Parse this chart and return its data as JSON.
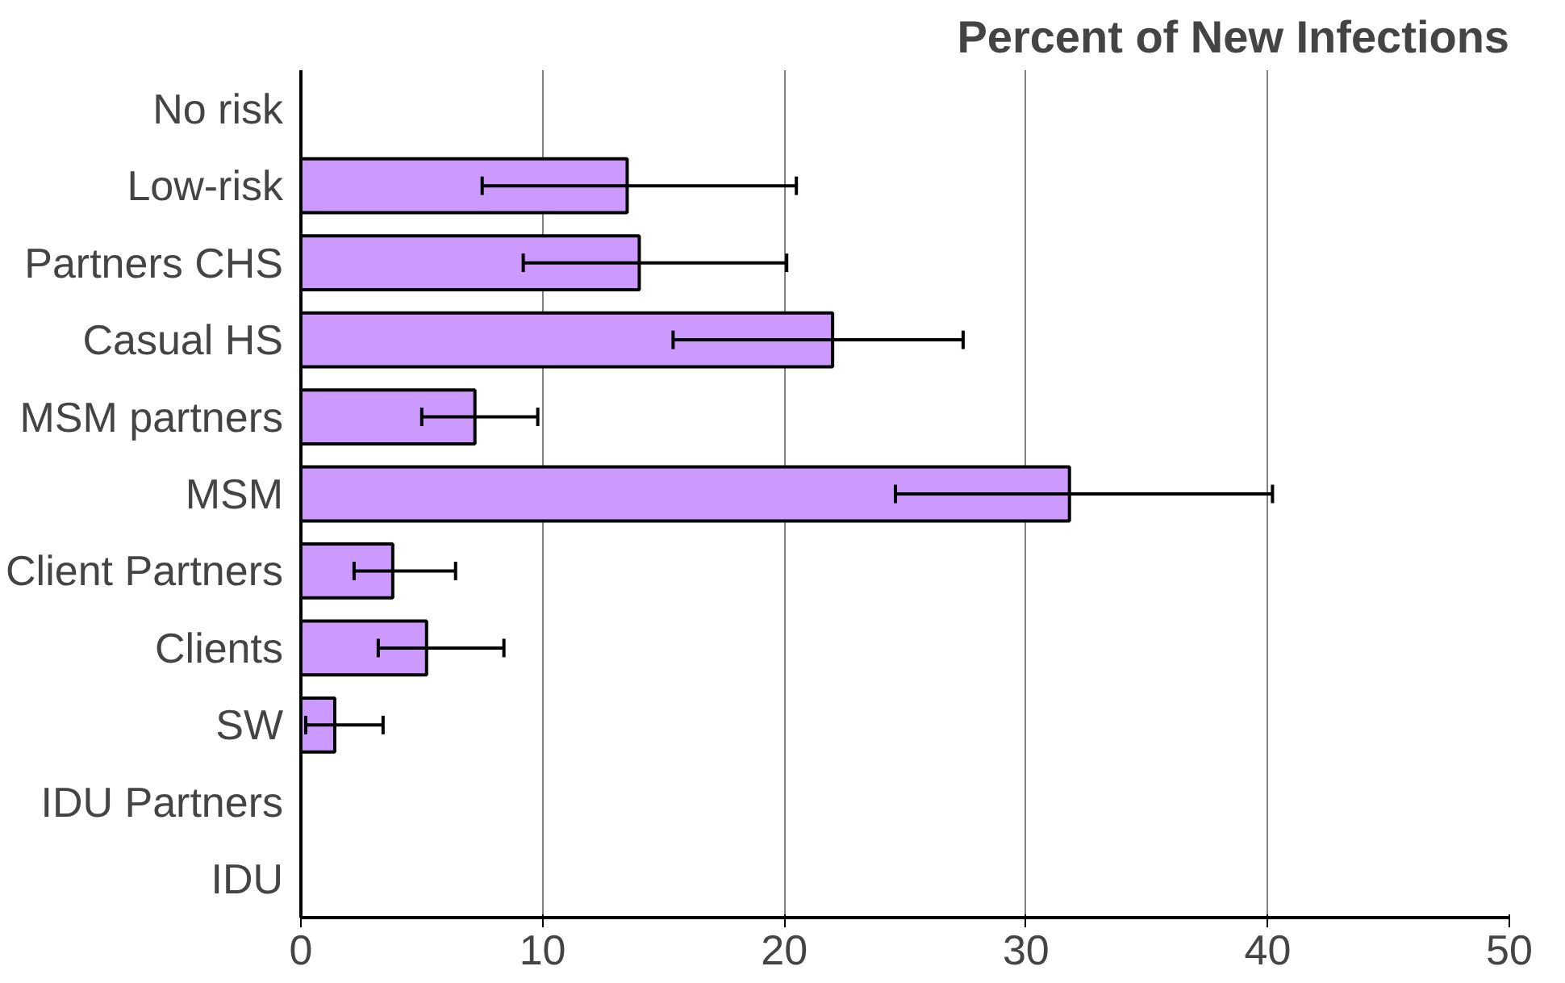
{
  "chart_data": {
    "type": "bar",
    "orientation": "horizontal",
    "title": "Percent of New Infections",
    "categories": [
      "No risk",
      "Low-risk",
      "Partners CHS",
      "Casual HS",
      "MSM partners",
      "MSM",
      "Client Partners",
      "Clients",
      "SW",
      "IDU Partners",
      "IDU"
    ],
    "values": [
      null,
      13.5,
      14.0,
      22.0,
      7.2,
      31.8,
      3.8,
      5.2,
      1.4,
      null,
      null
    ],
    "errors": [
      null,
      [
        7.5,
        20.5
      ],
      [
        9.2,
        20.1
      ],
      [
        15.4,
        27.4
      ],
      [
        5.0,
        9.8
      ],
      [
        24.6,
        40.2
      ],
      [
        2.2,
        6.4
      ],
      [
        3.2,
        8.4
      ],
      [
        0.2,
        3.4
      ],
      null,
      null
    ],
    "color": "#cc99ff",
    "xlim": [
      0,
      50
    ],
    "xticks": [
      0,
      10,
      20,
      30,
      40,
      50
    ],
    "grid": "x"
  }
}
